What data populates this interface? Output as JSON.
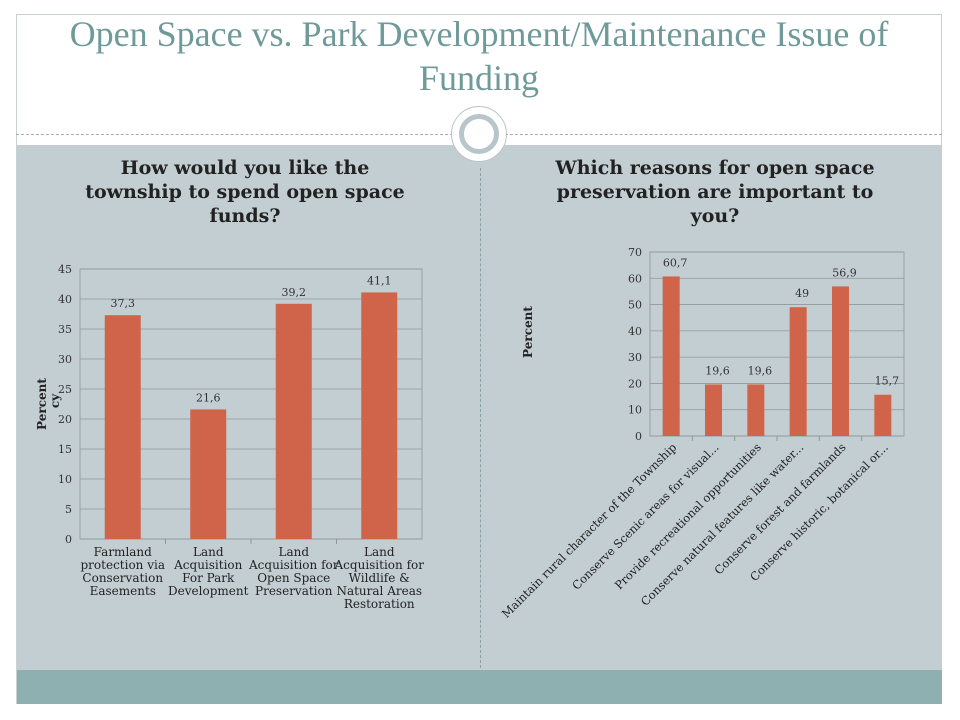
{
  "slide": {
    "title": "Open Space vs. Park Development/Maintenance Issue of Funding"
  },
  "colors": {
    "bar": "#d0644a",
    "title": "#6f9a9a",
    "panel": "#c3ced3",
    "band": "#8fb0b0"
  },
  "chart_data": [
    {
      "type": "bar",
      "title": "How would you like the township to spend open space funds?",
      "ylabel": "Percent",
      "ylabel_extra": "cy",
      "ylim": [
        0,
        45
      ],
      "ytick_step": 5,
      "categories": [
        "Farmland protection via Conservation Easements",
        "Land Acquisition For Park Development",
        "Land Acquisition for Open Space Preservation",
        "Land Acquisition for Wildlife & Natural Areas Restoration"
      ],
      "category_lines": [
        [
          "Farmland",
          "protection via",
          "Conservation",
          "Easements"
        ],
        [
          "Land",
          "Acquisition",
          "For Park",
          "Development"
        ],
        [
          "Land",
          "Acquisition for",
          "Open Space",
          "Preservation"
        ],
        [
          "Land",
          "Acquisition for",
          "Wildlife &",
          "Natural Areas",
          "Restoration"
        ]
      ],
      "values": [
        37.3,
        21.6,
        39.2,
        41.1
      ],
      "value_labels": [
        "37,3",
        "21,6",
        "39,2",
        "41,1"
      ],
      "grid": true
    },
    {
      "type": "bar",
      "title": "Which reasons for open space preservation are important to you?",
      "ylabel": "Percent",
      "ylim": [
        0,
        70
      ],
      "ytick_step": 10,
      "categories": [
        "Maintain rural character of the Township",
        "Conserve Scenic areas for visual...",
        "Provide recreational opportunities",
        "Conserve natural features like water...",
        "Conserve forest and farmlands",
        "Conserve historic, botanical or..."
      ],
      "values": [
        60.7,
        19.6,
        19.6,
        49,
        56.9,
        15.7
      ],
      "value_labels": [
        "60,7",
        "19,6",
        "19,6",
        "49",
        "56,9",
        "15,7"
      ],
      "grid": true
    }
  ]
}
